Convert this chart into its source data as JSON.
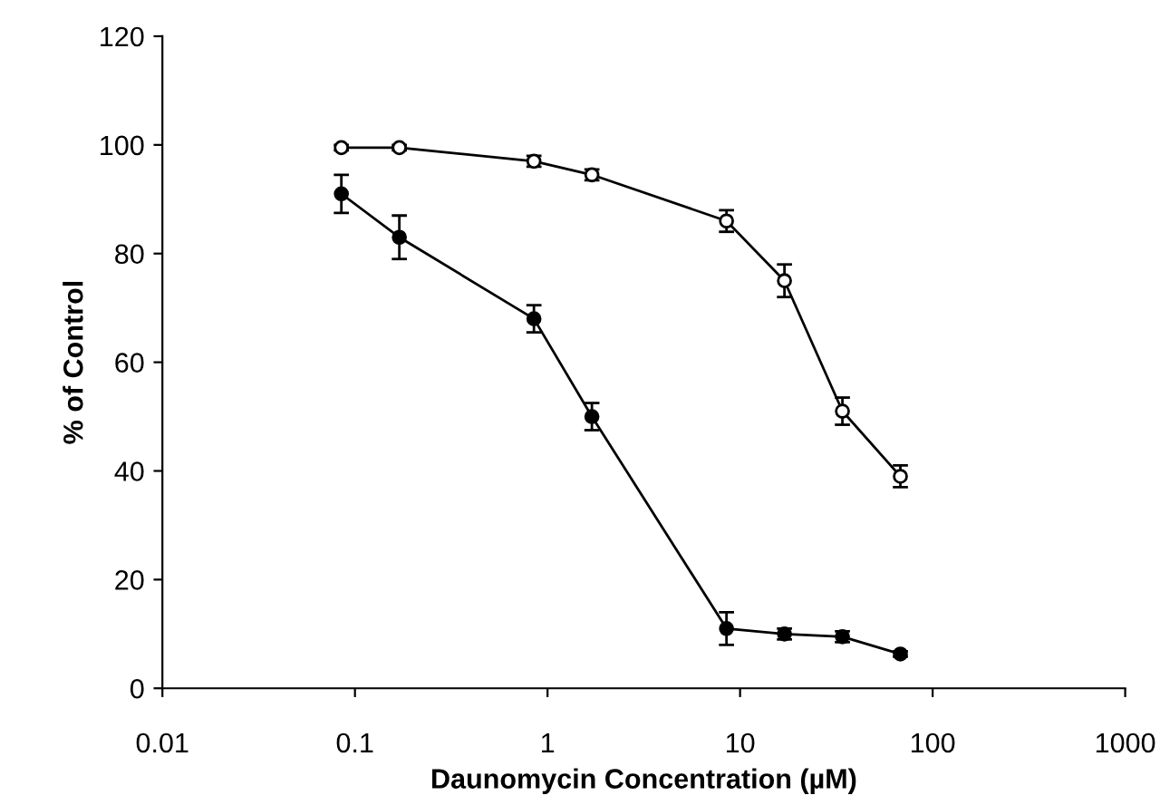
{
  "chart_data": {
    "type": "line",
    "xlabel": "Daunomycin Concentration (µM)",
    "ylabel": "% of Control",
    "log": "x",
    "xlim": [
      0.01,
      1000
    ],
    "xticks": [
      0.01,
      0.1,
      1,
      10,
      100,
      1000
    ],
    "ylim": [
      0,
      120
    ],
    "yticks": [
      0,
      20,
      40,
      60,
      80,
      100,
      120
    ],
    "grid": false,
    "legend": false,
    "line_style": "solid",
    "x": [
      0.085,
      0.17,
      0.85,
      1.7,
      8.5,
      17,
      34,
      68
    ],
    "series": [
      {
        "color": "#000000",
        "marker": "circle",
        "values": [
          99.5,
          99.5,
          97,
          94.5,
          86,
          75,
          51,
          39
        ],
        "errors": [
          0.5,
          0.5,
          1,
          1,
          2,
          3,
          2.5,
          2
        ]
      },
      {
        "color": "#000000",
        "marker": "circle",
        "values": [
          91,
          83,
          68,
          50,
          11,
          10,
          9.5,
          6.3
        ],
        "errors": [
          3.5,
          4,
          2.5,
          2.5,
          3,
          1,
          1,
          0.5
        ]
      }
    ]
  }
}
